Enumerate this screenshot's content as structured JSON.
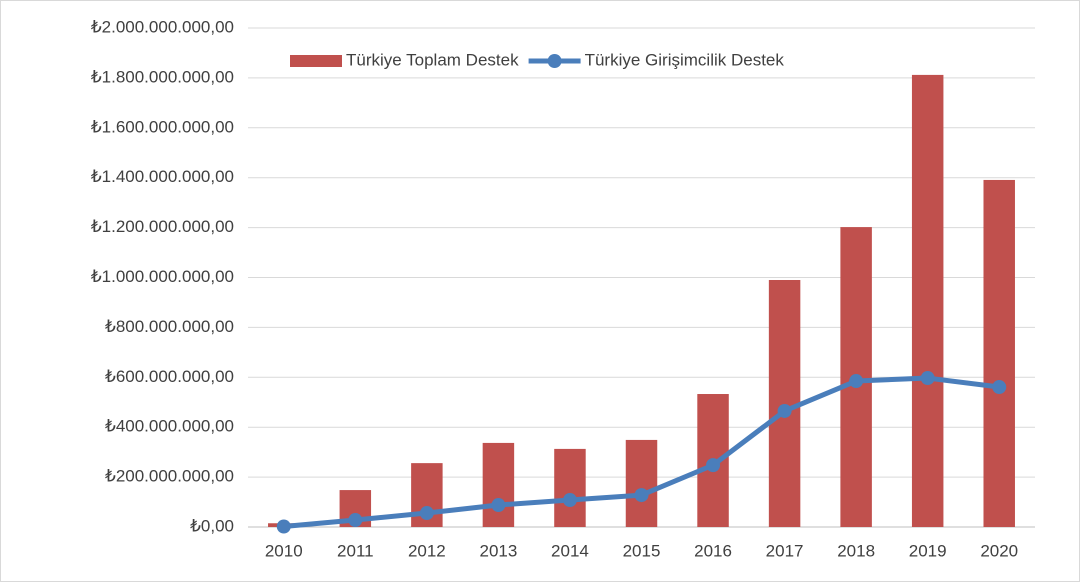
{
  "chart_data": {
    "type": "bar",
    "categories": [
      "2010",
      "2011",
      "2012",
      "2013",
      "2014",
      "2015",
      "2016",
      "2017",
      "2018",
      "2019",
      "2020"
    ],
    "series": [
      {
        "name": "Türkiye Toplam Destek",
        "type": "bar",
        "color": "#c0504d",
        "values": [
          15000000,
          148000000,
          256000000,
          337000000,
          313000000,
          349000000,
          533000000,
          990000000,
          1202000000,
          1812000000,
          1391000000
        ]
      },
      {
        "name": "Türkiye Girişimcilik Destek",
        "type": "line",
        "color": "#4a7ebb",
        "values": [
          2000000,
          28000000,
          56000000,
          88000000,
          108000000,
          128000000,
          248000000,
          465000000,
          585000000,
          597000000,
          561000000
        ]
      }
    ],
    "ylim": [
      0,
      2000000000
    ],
    "yticks": [
      {
        "value": 0,
        "label": "₺0,00"
      },
      {
        "value": 200000000,
        "label": "₺200.000.000,00"
      },
      {
        "value": 400000000,
        "label": "₺400.000.000,00"
      },
      {
        "value": 600000000,
        "label": "₺600.000.000,00"
      },
      {
        "value": 800000000,
        "label": "₺800.000.000,00"
      },
      {
        "value": 1000000000,
        "label": "₺1.000.000.000,00"
      },
      {
        "value": 1200000000,
        "label": "₺1.200.000.000,00"
      },
      {
        "value": 1400000000,
        "label": "₺1.400.000.000,00"
      },
      {
        "value": 1600000000,
        "label": "₺1.600.000.000,00"
      },
      {
        "value": 1800000000,
        "label": "₺1.800.000.000,00"
      },
      {
        "value": 2000000000,
        "label": "₺2.000.000.000,00"
      }
    ],
    "grid": true,
    "legend": "top"
  }
}
